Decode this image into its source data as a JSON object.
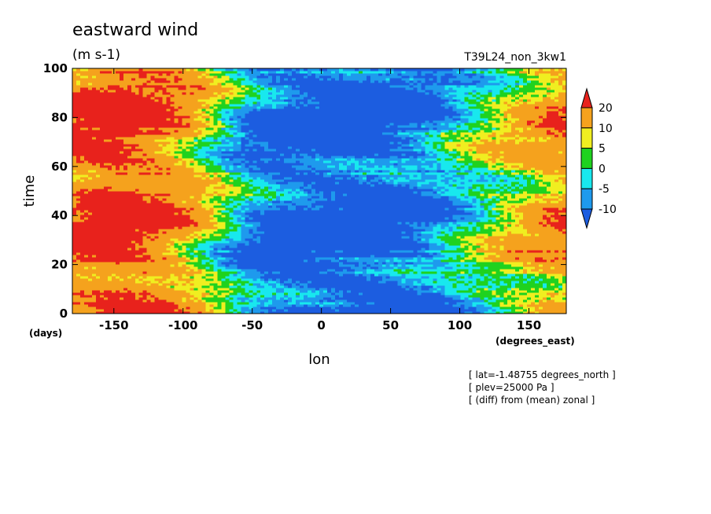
{
  "chart_data": {
    "type": "heatmap",
    "title": "eastward wind",
    "units": "(m s-1)",
    "run_label": "T39L24_non_3kw1",
    "xlabel": "lon",
    "x_units": "(degrees_east)",
    "ylabel": "time",
    "y_units": "(days)",
    "xlim": [
      -180,
      177
    ],
    "ylim": [
      0,
      100
    ],
    "x_ticks": [
      "-150",
      "-100",
      "-50",
      "0",
      "50",
      "100",
      "150"
    ],
    "y_ticks": [
      "0",
      "20",
      "40",
      "60",
      "80",
      "100"
    ],
    "x_tick_values": [
      -150,
      -100,
      -50,
      0,
      50,
      100,
      150
    ],
    "y_tick_values": [
      0,
      20,
      40,
      60,
      80,
      100
    ],
    "colorbar": {
      "levels": [
        "20",
        "10",
        "5",
        "0",
        "-5",
        "-10"
      ],
      "bins": [
        {
          "range": "> 20",
          "color": "#e8221c"
        },
        {
          "range": "10 to 20",
          "color": "#f5a21d"
        },
        {
          "range": "5 to 10",
          "color": "#f0ee20"
        },
        {
          "range": "0 to 5",
          "color": "#1fd21f"
        },
        {
          "range": "-5 to 0",
          "color": "#18e8ee"
        },
        {
          "range": "-10 to -5",
          "color": "#1e9aed"
        },
        {
          "range": "< -10",
          "color": "#1c5de0"
        }
      ]
    },
    "pattern": [
      {
        "lon": -180,
        "value": 20
      },
      {
        "lon": -150,
        "value": 24
      },
      {
        "lon": -120,
        "value": 20
      },
      {
        "lon": -95,
        "value": 12
      },
      {
        "lon": -75,
        "value": 3
      },
      {
        "lon": -55,
        "value": -7
      },
      {
        "lon": -30,
        "value": -13
      },
      {
        "lon": 0,
        "value": -15
      },
      {
        "lon": 40,
        "value": -15
      },
      {
        "lon": 75,
        "value": -10
      },
      {
        "lon": 100,
        "value": -2
      },
      {
        "lon": 130,
        "value": 6
      },
      {
        "lon": 160,
        "value": 13
      },
      {
        "lon": 177,
        "value": 15
      }
    ]
  },
  "notes": [
    "[ lat=-1.48755 degrees_north ]",
    "[ plev=25000 Pa ]",
    "[ (diff) from (mean) zonal ]"
  ]
}
